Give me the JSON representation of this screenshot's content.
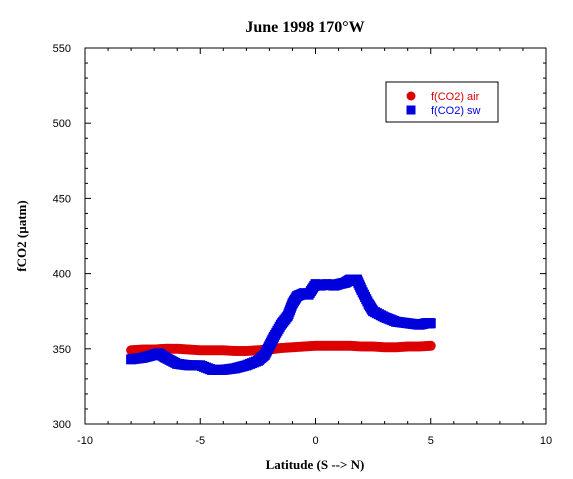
{
  "chart_data": {
    "type": "scatter",
    "title": "June 1998 170°W",
    "xlabel": "Latitude (S --> N)",
    "ylabel": "fCO2 (µatm)",
    "xlim": [
      -10,
      10
    ],
    "ylim": [
      300,
      550
    ],
    "xticks": [
      -10,
      -5,
      0,
      5,
      10
    ],
    "yticks": [
      300,
      350,
      400,
      450,
      500,
      550
    ],
    "legend_position": "top-right",
    "grid": false,
    "series": [
      {
        "name": "f(CO2) air",
        "color": "#dd0000",
        "marker": "circle",
        "x": [
          -8.0,
          -7.5,
          -7.0,
          -6.5,
          -6.0,
          -5.5,
          -5.0,
          -4.5,
          -4.0,
          -3.5,
          -3.0,
          -2.5,
          -2.0,
          -1.5,
          -1.0,
          -0.5,
          0.0,
          0.5,
          1.0,
          1.5,
          2.0,
          2.5,
          3.0,
          3.5,
          4.0,
          4.5,
          5.0
        ],
        "y": [
          349,
          349.5,
          349.5,
          350,
          350,
          349.5,
          349,
          349,
          349,
          348.5,
          348.5,
          349,
          349.5,
          350.5,
          351,
          351.5,
          352,
          352,
          352,
          352,
          351.5,
          351.5,
          351,
          351,
          351.5,
          351.5,
          352
        ]
      },
      {
        "name": "f(CO2) sw",
        "color": "#0000dd",
        "marker": "square",
        "x": [
          -8.0,
          -7.5,
          -7.0,
          -6.8,
          -6.5,
          -6.0,
          -5.5,
          -5.0,
          -4.5,
          -4.0,
          -3.5,
          -3.0,
          -2.5,
          -2.2,
          -2.0,
          -1.8,
          -1.5,
          -1.2,
          -1.0,
          -0.8,
          -0.5,
          -0.3,
          0.0,
          0.2,
          0.5,
          0.8,
          1.0,
          1.3,
          1.5,
          1.8,
          2.0,
          2.3,
          2.5,
          3.0,
          3.5,
          4.0,
          4.5,
          4.8,
          5.0
        ],
        "y": [
          343,
          344,
          346,
          347,
          344,
          340,
          339,
          339,
          336,
          336,
          337,
          339,
          342,
          346,
          352,
          358,
          366,
          372,
          380,
          385,
          387,
          386,
          393,
          392,
          393,
          392,
          393,
          394,
          396,
          396,
          389,
          380,
          375,
          371,
          368,
          367,
          366,
          367,
          367
        ]
      }
    ]
  }
}
